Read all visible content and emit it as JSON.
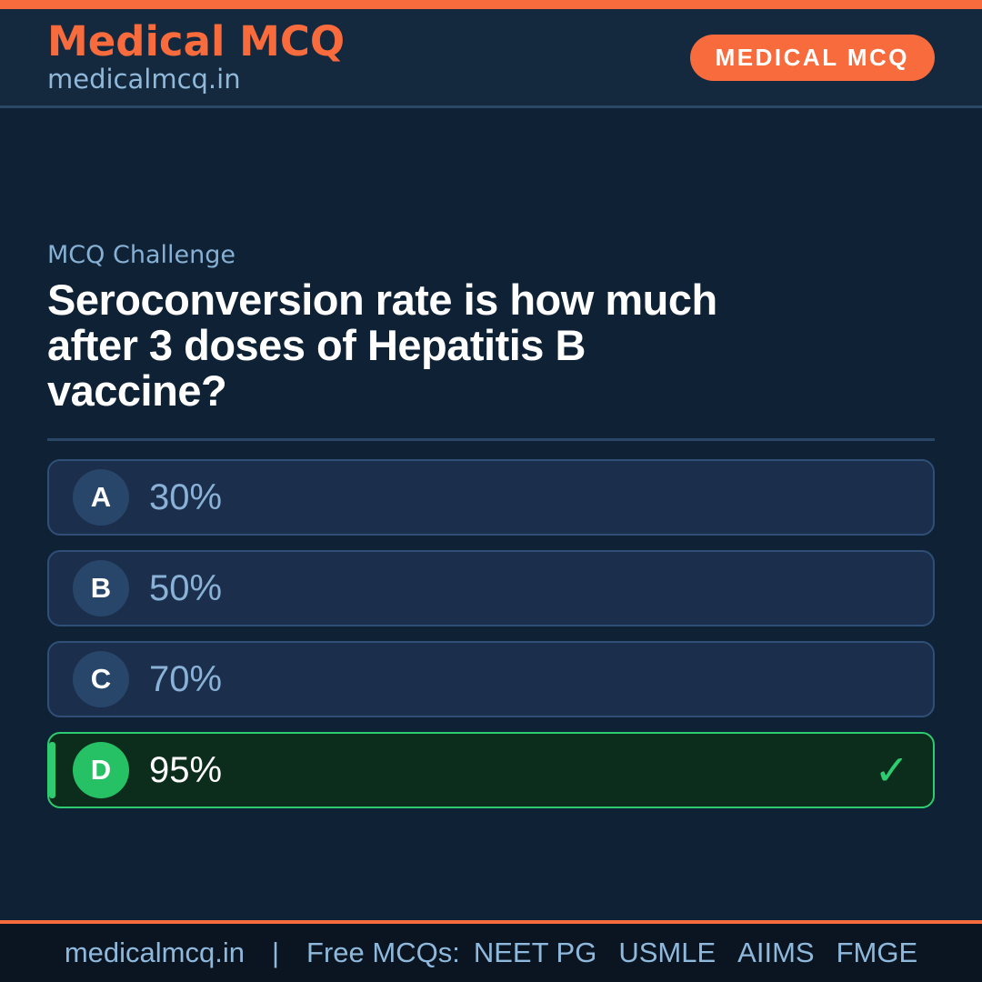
{
  "theme": {
    "orange": "#f86b3d",
    "navy_bg": "#0f2134",
    "header_bg": "#14283e",
    "footer_bg": "#0a1521",
    "card_bg": "#1b2f4c",
    "card_border": "#2f4f76",
    "divider": "#2b4767",
    "badge_bg": "#28466a",
    "light_blue": "#8fb8d9",
    "muted_blue": "#86b0d4",
    "option_text": "#8ab2d6",
    "footer_text": "#8fb9dc",
    "green": "#2ecc71",
    "green_dark_bg": "#0c2d1c",
    "green_badge": "#26c165"
  },
  "header": {
    "brand": "Medical MCQ",
    "site": "medicalmcq.in",
    "badge": "MEDICAL MCQ"
  },
  "question": {
    "label": "MCQ Challenge",
    "text": "Seroconversion rate is how much\nafter 3 doses of Hepatitis B\nvaccine?"
  },
  "options": [
    {
      "letter": "A",
      "text": "30%",
      "correct": false
    },
    {
      "letter": "B",
      "text": "50%",
      "correct": false
    },
    {
      "letter": "C",
      "text": "70%",
      "correct": false
    },
    {
      "letter": "D",
      "text": "95%",
      "correct": true
    }
  ],
  "correct_icon": "✓",
  "footer": {
    "site": "medicalmcq.in",
    "separator": "|",
    "tagline": "Free MCQs:",
    "exams": [
      "NEET PG",
      "USMLE",
      "AIIMS",
      "FMGE"
    ]
  }
}
